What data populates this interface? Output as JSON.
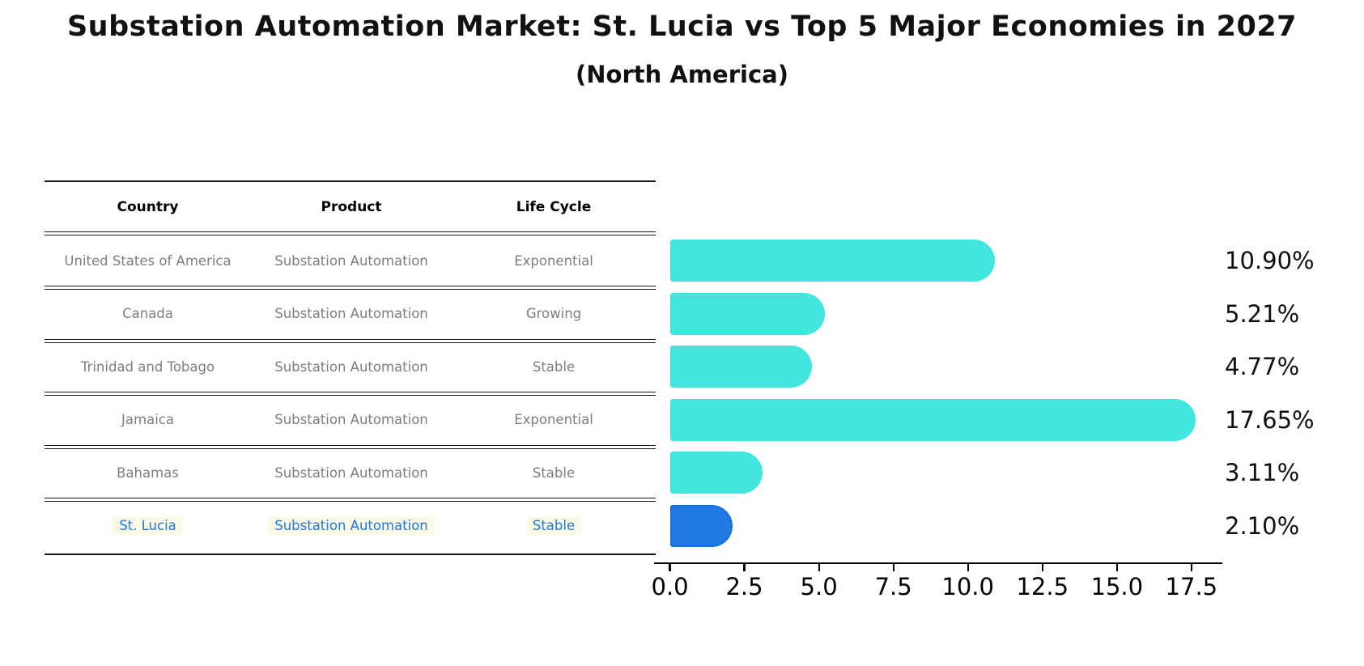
{
  "header": {
    "title": "Substation Automation Market: St. Lucia vs Top 5 Major Economies in 2027",
    "subtitle": "(North America)"
  },
  "table": {
    "columns": [
      "Country",
      "Product",
      "Life Cycle"
    ],
    "rows": [
      {
        "country": "United States of America",
        "product": "Substation Automation",
        "life_cycle": "Exponential",
        "highlight": false
      },
      {
        "country": "Canada",
        "product": "Substation Automation",
        "life_cycle": "Growing",
        "highlight": false
      },
      {
        "country": "Trinidad and Tobago",
        "product": "Substation Automation",
        "life_cycle": "Stable",
        "highlight": false
      },
      {
        "country": "Jamaica",
        "product": "Substation Automation",
        "life_cycle": "Exponential",
        "highlight": false
      },
      {
        "country": "Bahamas",
        "product": "Substation Automation",
        "life_cycle": "Stable",
        "highlight": false
      },
      {
        "country": "St. Lucia",
        "product": "Substation Automation",
        "life_cycle": "Stable",
        "highlight": true
      }
    ]
  },
  "chart_data": {
    "type": "bar",
    "orientation": "horizontal",
    "title": "Substation Automation Market: St. Lucia vs Top 5 Major Economies in 2027",
    "subtitle": "(North America)",
    "categories": [
      "United States of America",
      "Canada",
      "Trinidad and Tobago",
      "Jamaica",
      "Bahamas",
      "St. Lucia"
    ],
    "values": [
      10.9,
      5.21,
      4.77,
      17.65,
      3.11,
      2.1
    ],
    "value_labels": [
      "10.90%",
      "5.21%",
      "4.77%",
      "17.65%",
      "3.11%",
      "2.10%"
    ],
    "xlabel": "",
    "ylabel": "",
    "xlim": [
      0,
      18.5
    ],
    "xticks": [
      0.0,
      2.5,
      5.0,
      7.5,
      10.0,
      12.5,
      15.0,
      17.5
    ],
    "xtick_labels": [
      "0.0",
      "2.5",
      "5.0",
      "7.5",
      "10.0",
      "12.5",
      "15.0",
      "17.5"
    ],
    "grid": false,
    "legend": false,
    "bar_color": "#43E5DF",
    "highlight_index": 5,
    "highlight_color": "#1F7BE1",
    "highlight_border_style": "dotted"
  },
  "colors": {
    "table_text": "#7E7E7E",
    "header_text": "#000000",
    "highlight_text": "#1E79E1",
    "highlight_bg": "#FBFAE6",
    "axis": "#000000",
    "value_label": "#101010"
  }
}
